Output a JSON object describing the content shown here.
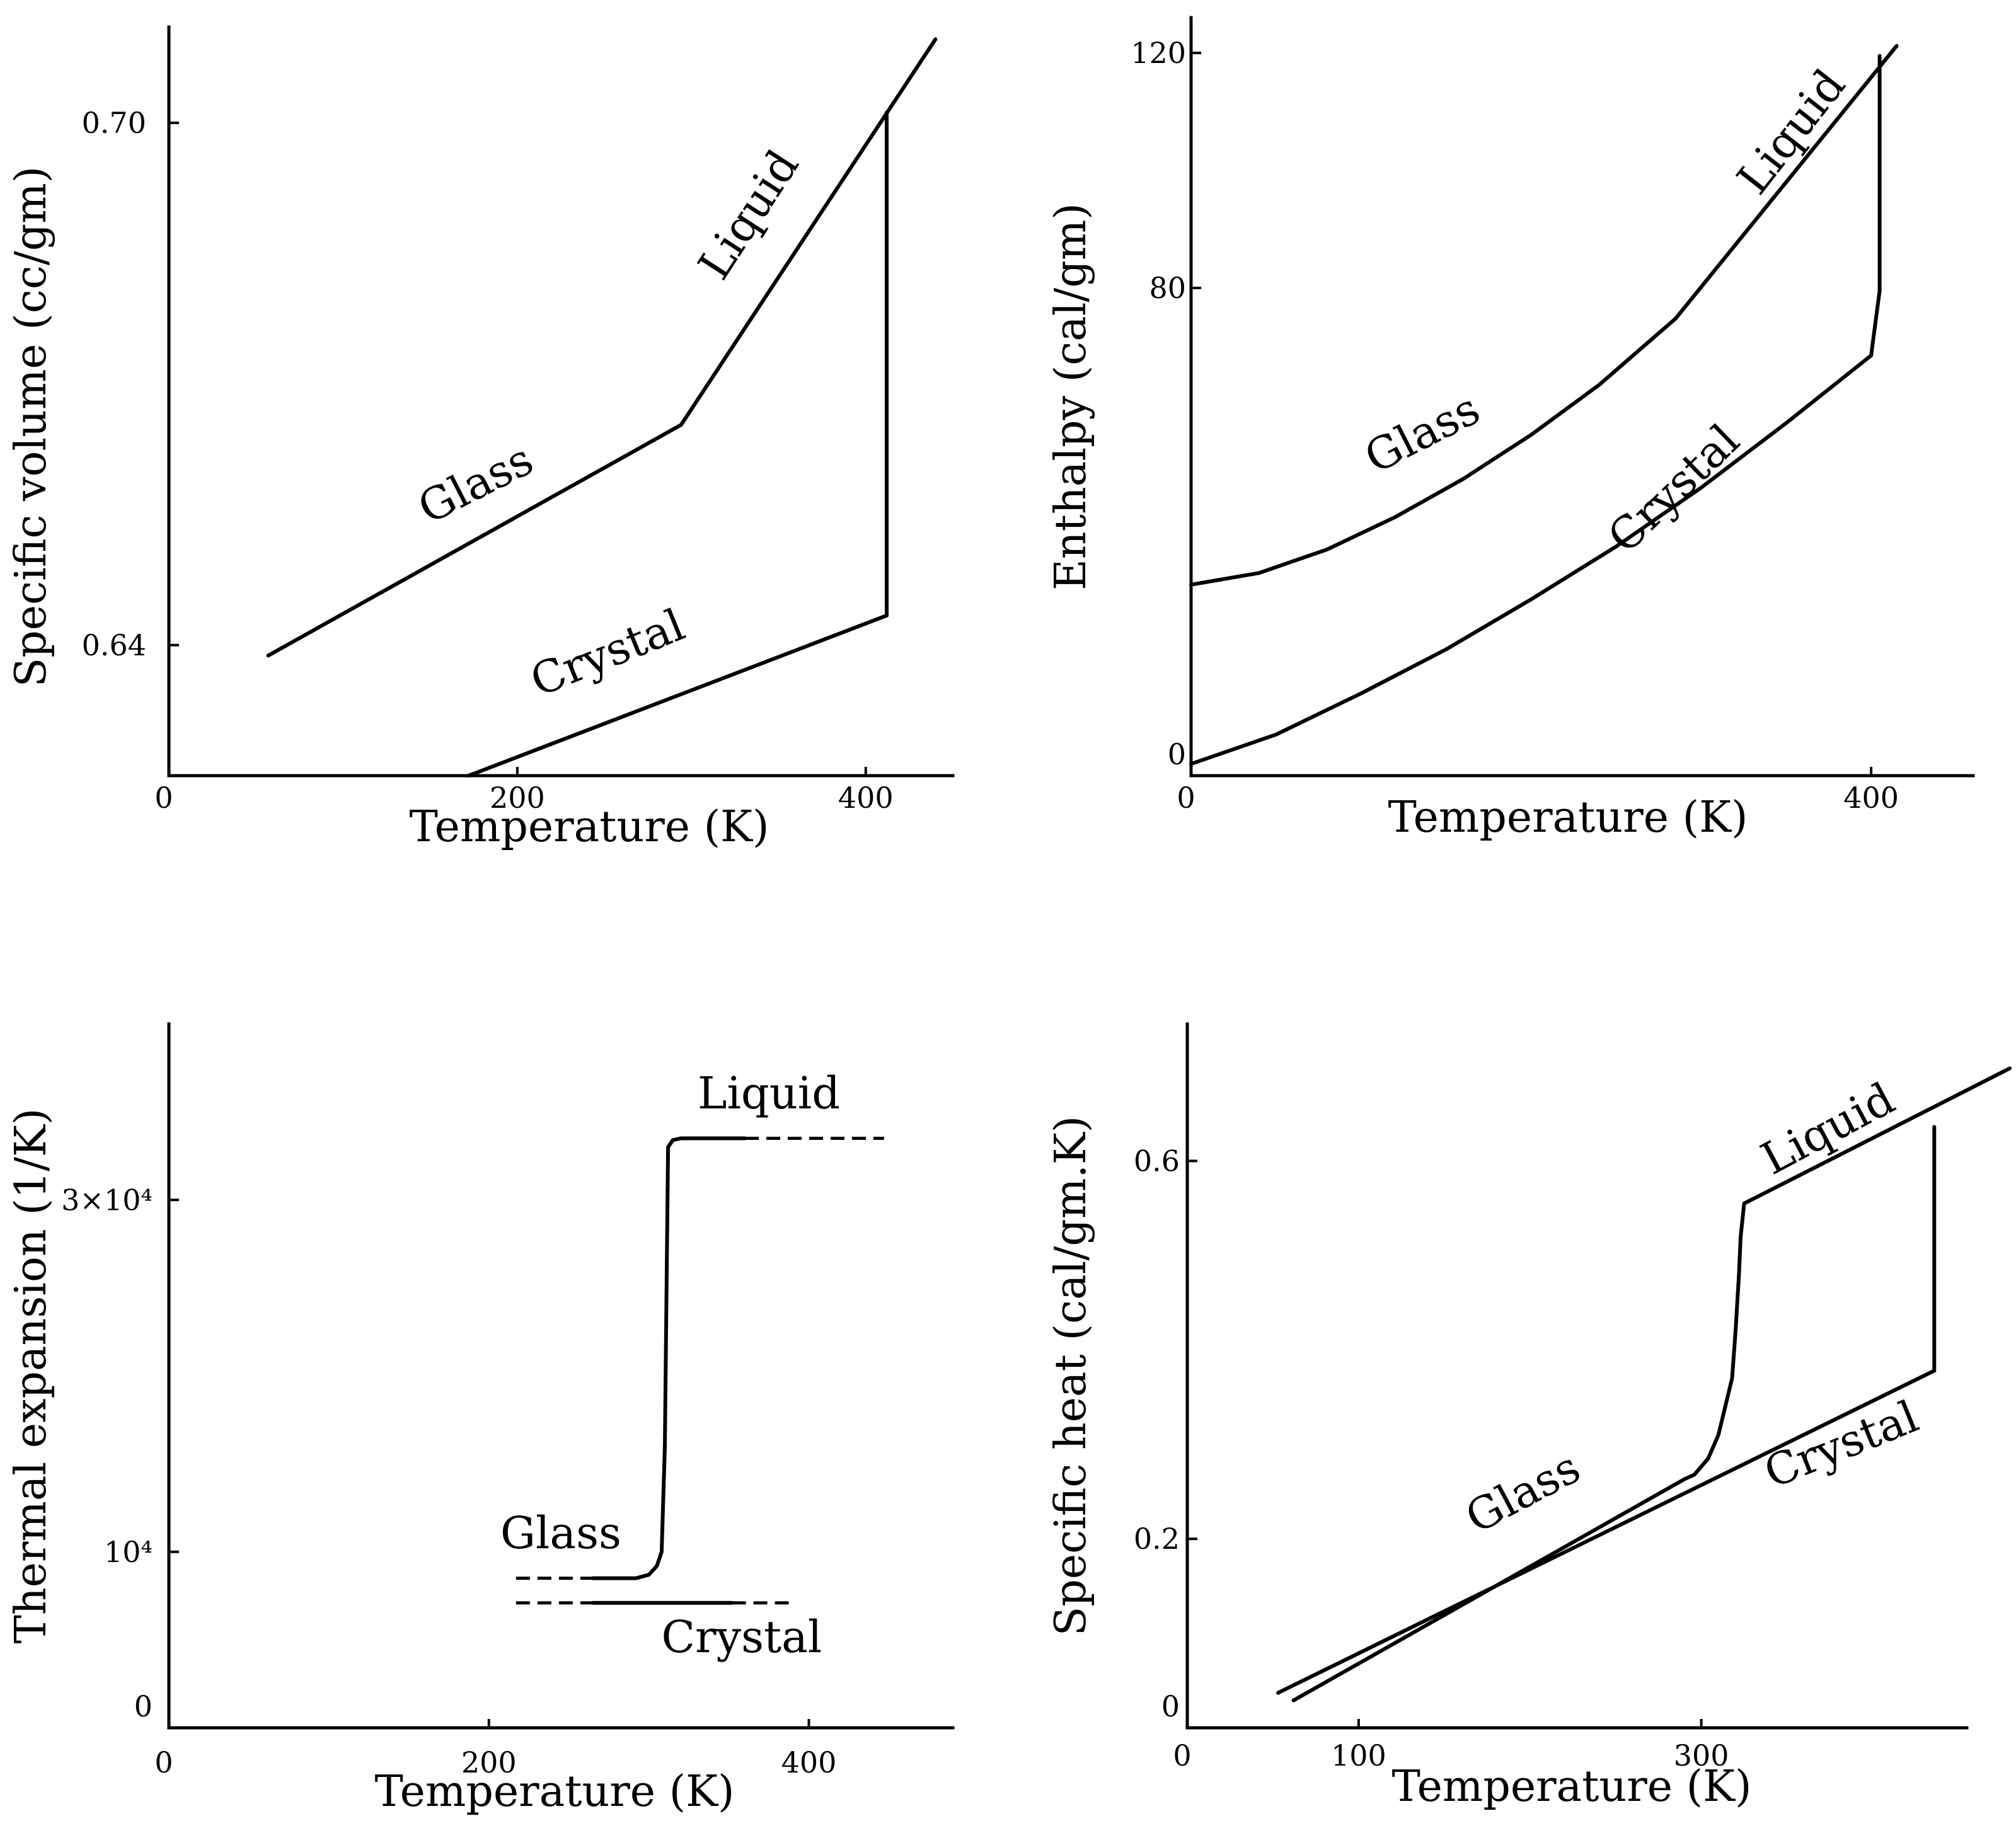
{
  "chart_data": [
    {
      "id": "vol",
      "type": "line",
      "xlabel": "Temperature (K)",
      "ylabel": "Specific volume (cc/gm)",
      "xlim": [
        0,
        450
      ],
      "ylim": [
        0.625,
        0.711
      ],
      "xticks": [
        0,
        200,
        400
      ],
      "xtick_labels": [
        "0",
        "200",
        "400"
      ],
      "yticks": [
        0.64,
        0.7
      ],
      "ytick_labels": [
        "0.64",
        "0.70"
      ],
      "series": [
        {
          "name": "Glass",
          "style": "solid",
          "x": [
            57,
            294
          ],
          "y": [
            0.6388,
            0.6653
          ]
        },
        {
          "name": "Liquid",
          "style": "solid",
          "x": [
            294,
            440
          ],
          "y": [
            0.6653,
            0.7096
          ]
        },
        {
          "name": "Crystal",
          "style": "solid",
          "x": [
            172,
            412
          ],
          "y": [
            0.625,
            0.6434
          ]
        },
        {
          "name": "Melting transition",
          "style": "solid",
          "x": [
            412,
            412
          ],
          "y": [
            0.6434,
            0.7012
          ]
        }
      ],
      "annotations": [
        {
          "text": "Liquid",
          "x": 340,
          "y": 0.6885,
          "rotate": -57
        },
        {
          "text": "Glass",
          "x": 180,
          "y": 0.657,
          "rotate": -27
        },
        {
          "text": "Crystal",
          "x": 255,
          "y": 0.6375,
          "rotate": -22
        }
      ]
    },
    {
      "id": "enthalpy",
      "type": "line",
      "xlabel": "Temperature (K)",
      "ylabel": "Enthalpy (cal/gm)",
      "xlim": [
        0,
        460
      ],
      "ylim": [
        -3,
        126
      ],
      "xticks": [
        0,
        400
      ],
      "xtick_labels": [
        "0",
        "400"
      ],
      "yticks": [
        0,
        80,
        120
      ],
      "ytick_labels": [
        "0",
        "80",
        "120"
      ],
      "series": [
        {
          "name": "Glass",
          "style": "solid",
          "x": [
            0,
            40,
            80,
            120,
            160,
            200,
            240,
            285
          ],
          "y": [
            29.5,
            31.5,
            35.5,
            41.0,
            47.5,
            55.0,
            63.5,
            74.8
          ]
        },
        {
          "name": "Liquid",
          "style": "solid",
          "x": [
            285,
            415
          ],
          "y": [
            74.8,
            121.2
          ]
        },
        {
          "name": "Crystal",
          "style": "solid",
          "x": [
            0,
            50,
            100,
            150,
            200,
            250,
            300,
            350,
            400
          ],
          "y": [
            -1.0,
            4.0,
            11.0,
            18.5,
            27.0,
            36.0,
            46.0,
            57.0,
            68.5
          ]
        },
        {
          "name": "Crystal",
          "style": "solid",
          "x": [
            400,
            405
          ],
          "y": [
            68.5,
            79.5
          ]
        },
        {
          "name": "Melting transition",
          "style": "solid",
          "x": [
            405,
            405
          ],
          "y": [
            79.5,
            119.5
          ]
        }
      ],
      "annotations": [
        {
          "text": "Liquid",
          "x": 360,
          "y": 105,
          "rotate": -52
        },
        {
          "text": "Glass",
          "x": 140,
          "y": 53,
          "rotate": -27
        },
        {
          "text": "Crystal",
          "x": 290,
          "y": 44,
          "rotate": -44
        }
      ]
    },
    {
      "id": "expansion",
      "type": "line",
      "xlabel": "Temperature (K)",
      "ylabel": "Thermal expansion (1/K)",
      "xlim": [
        0,
        490
      ],
      "ylim": [
        0,
        40000
      ],
      "xticks": [
        0,
        200,
        400
      ],
      "xtick_labels": [
        "0",
        "200",
        "400"
      ],
      "yticks": [
        0,
        10000,
        30000
      ],
      "ytick_labels": [
        "0",
        "10⁴",
        "3×10⁴"
      ],
      "series": [
        {
          "name": "Glass",
          "style": "solid",
          "x": [
            265,
            292,
            300,
            305,
            308,
            310,
            312
          ],
          "y": [
            8500,
            8500,
            8700,
            9200,
            10000,
            16000,
            33000
          ]
        },
        {
          "name": "Liquid",
          "style": "solid",
          "x": [
            312,
            315,
            320,
            360
          ],
          "y": [
            33000,
            33400,
            33500,
            33500
          ]
        },
        {
          "name": "Crystal",
          "style": "solid",
          "x": [
            265,
            352
          ],
          "y": [
            7100,
            7100
          ]
        },
        {
          "name": "Glass (extrapolated)",
          "style": "dashed",
          "x": [
            217,
            265
          ],
          "y": [
            8500,
            8500
          ]
        },
        {
          "name": "Crystal (extrapolated)",
          "style": "dashed",
          "x": [
            217,
            265
          ],
          "y": [
            7100,
            7100
          ]
        },
        {
          "name": "Crystal (extrapolated)",
          "style": "dashed",
          "x": [
            352,
            388
          ],
          "y": [
            7100,
            7100
          ]
        },
        {
          "name": "Liquid (extrapolated)",
          "style": "dashed",
          "x": [
            360,
            447
          ],
          "y": [
            33500,
            33500
          ]
        }
      ],
      "annotations": [
        {
          "text": "Liquid",
          "x": 375,
          "y": 35200,
          "rotate": 0
        },
        {
          "text": "Glass",
          "x": 245,
          "y": 10200,
          "rotate": 0
        },
        {
          "text": "Crystal",
          "x": 358,
          "y": 4300,
          "rotate": 0
        }
      ]
    },
    {
      "id": "heat",
      "type": "line",
      "xlabel": "Temperature (K)",
      "ylabel": "Specific heat (cal/gm.K)",
      "xlim": [
        0,
        455
      ],
      "ylim": [
        0,
        0.745
      ],
      "xticks": [
        0,
        100,
        300
      ],
      "xtick_labels": [
        "0",
        "100",
        "300"
      ],
      "yticks": [
        0,
        0.2,
        0.6
      ],
      "ytick_labels": [
        "0",
        "0.2",
        "0.6"
      ],
      "series": [
        {
          "name": "Glass",
          "style": "solid",
          "x": [
            62,
            290,
            296,
            304,
            310,
            318,
            320,
            322,
            323,
            325
          ],
          "y": [
            0.029,
            0.263,
            0.268,
            0.285,
            0.31,
            0.37,
            0.42,
            0.48,
            0.52,
            0.555
          ]
        },
        {
          "name": "Liquid",
          "style": "solid",
          "x": [
            325,
            480
          ],
          "y": [
            0.555,
            0.698
          ]
        },
        {
          "name": "Crystal",
          "style": "solid",
          "x": [
            53,
            436
          ],
          "y": [
            0.037,
            0.378
          ]
        },
        {
          "name": "Melting transition",
          "style": "solid",
          "x": [
            436,
            436
          ],
          "y": [
            0.378,
            0.636
          ]
        }
      ],
      "annotations": [
        {
          "text": "Liquid",
          "x": 378,
          "y": 0.62,
          "rotate": -28
        },
        {
          "text": "Glass",
          "x": 200,
          "y": 0.235,
          "rotate": -28
        },
        {
          "text": "Crystal",
          "x": 385,
          "y": 0.285,
          "rotate": -22
        }
      ]
    }
  ]
}
